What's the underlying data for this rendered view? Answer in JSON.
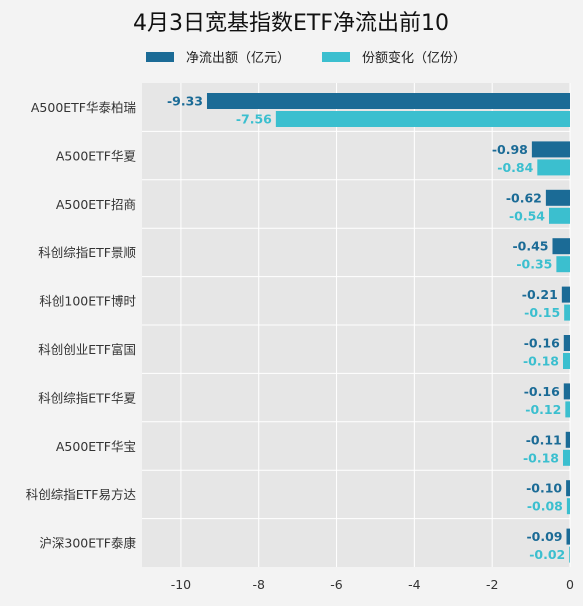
{
  "chart_data": {
    "type": "bar",
    "orientation": "horizontal",
    "title": "4月3日宽基指数ETF净流出前10",
    "categories": [
      "A500ETF华泰柏瑞",
      "A500ETF华夏",
      "A500ETF招商",
      "科创综指ETF景顺",
      "科创100ETF博时",
      "科创创业ETF富国",
      "科创综指ETF华夏",
      "A500ETF华宝",
      "科创综指ETF易方达",
      "沪深300ETF泰康"
    ],
    "series": [
      {
        "name": "净流出额（亿元）",
        "color": "#1b6b96",
        "values": [
          -9.33,
          -0.98,
          -0.62,
          -0.45,
          -0.21,
          -0.16,
          -0.16,
          -0.11,
          -0.1,
          -0.09
        ]
      },
      {
        "name": "份额变化（亿份）",
        "color": "#3bbfcf",
        "values": [
          -7.56,
          -0.84,
          -0.54,
          -0.35,
          -0.15,
          -0.18,
          -0.12,
          -0.18,
          -0.08,
          -0.02
        ]
      }
    ],
    "xlim": [
      -11,
      0
    ],
    "xticks": [
      -10,
      -8,
      -6,
      -4,
      -2,
      0
    ],
    "grid": true,
    "legend_position": "top"
  }
}
